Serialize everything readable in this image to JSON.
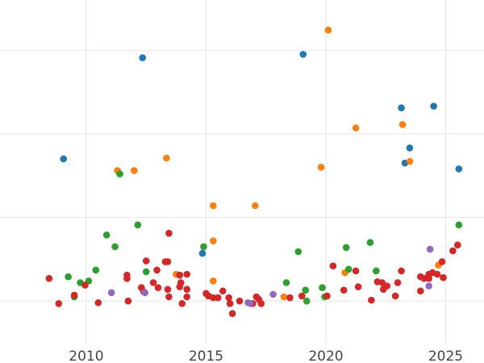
{
  "chart_data": {
    "type": "scatter",
    "x_axis": {
      "kind": "year",
      "lim": [
        2006.4,
        2026.6
      ],
      "ticks": [
        2010,
        2015,
        2020,
        2025
      ]
    },
    "y_axis": {
      "lim": [
        -0.5,
        3.6
      ],
      "ticks": [
        0,
        1,
        2,
        3
      ],
      "tick_labels_visible": false
    },
    "grid": true,
    "legend": "none",
    "series": [
      {
        "color": "#1f77b4",
        "points": [
          [
            2009.05,
            1.7
          ],
          [
            2012.35,
            2.91
          ],
          [
            2014.85,
            0.57
          ],
          [
            2019.05,
            2.95
          ],
          [
            2023.15,
            2.31
          ],
          [
            2023.3,
            1.65
          ],
          [
            2023.5,
            1.83
          ],
          [
            2024.5,
            2.33
          ],
          [
            2025.55,
            1.58
          ]
        ]
      },
      {
        "color": "#ff7f0e",
        "points": [
          [
            2011.3,
            1.56
          ],
          [
            2012.0,
            1.56
          ],
          [
            2013.35,
            1.71
          ],
          [
            2013.75,
            0.32
          ],
          [
            2015.3,
            1.14
          ],
          [
            2015.3,
            0.72
          ],
          [
            2015.3,
            0.24
          ],
          [
            2017.05,
            1.14
          ],
          [
            2018.25,
            0.05
          ],
          [
            2019.8,
            1.6
          ],
          [
            2020.1,
            3.24
          ],
          [
            2020.8,
            0.34
          ],
          [
            2021.25,
            2.07
          ],
          [
            2023.2,
            2.11
          ],
          [
            2023.5,
            1.67
          ],
          [
            2024.7,
            0.43
          ]
        ]
      },
      {
        "color": "#2ca02c",
        "points": [
          [
            2009.25,
            0.29
          ],
          [
            2009.5,
            0.05
          ],
          [
            2009.75,
            0.22
          ],
          [
            2010.1,
            0.24
          ],
          [
            2010.4,
            0.37
          ],
          [
            2010.85,
            0.79
          ],
          [
            2011.2,
            0.65
          ],
          [
            2011.4,
            1.52
          ],
          [
            2012.15,
            0.91
          ],
          [
            2012.5,
            0.35
          ],
          [
            2014.9,
            0.65
          ],
          [
            2018.35,
            0.22
          ],
          [
            2018.85,
            0.59
          ],
          [
            2019.15,
            0.13
          ],
          [
            2019.2,
            0.0
          ],
          [
            2019.85,
            0.16
          ],
          [
            2019.95,
            0.05
          ],
          [
            2020.85,
            0.64
          ],
          [
            2020.95,
            0.38
          ],
          [
            2021.85,
            0.7
          ],
          [
            2022.1,
            0.36
          ],
          [
            2025.55,
            0.91
          ]
        ]
      },
      {
        "color": "#d62728",
        "points": [
          [
            2008.45,
            0.27
          ],
          [
            2008.85,
            -0.03
          ],
          [
            2009.5,
            0.07
          ],
          [
            2009.95,
            0.19
          ],
          [
            2010.5,
            -0.02
          ],
          [
            2011.7,
            0.31
          ],
          [
            2011.7,
            0.27
          ],
          [
            2011.75,
            0.0
          ],
          [
            2012.3,
            0.16
          ],
          [
            2012.4,
            0.11
          ],
          [
            2012.5,
            0.48
          ],
          [
            2012.8,
            0.22
          ],
          [
            2012.95,
            0.37
          ],
          [
            2013.0,
            0.16
          ],
          [
            2013.3,
            0.47
          ],
          [
            2013.4,
            0.47
          ],
          [
            2013.4,
            0.14
          ],
          [
            2013.45,
            0.05
          ],
          [
            2013.45,
            0.81
          ],
          [
            2013.9,
            0.31
          ],
          [
            2013.9,
            0.17
          ],
          [
            2013.95,
            0.22
          ],
          [
            2014.0,
            -0.03
          ],
          [
            2014.2,
            0.32
          ],
          [
            2014.2,
            0.14
          ],
          [
            2014.2,
            0.05
          ],
          [
            2015.0,
            0.09
          ],
          [
            2015.1,
            0.06
          ],
          [
            2015.3,
            0.04
          ],
          [
            2015.5,
            0.04
          ],
          [
            2015.7,
            0.12
          ],
          [
            2015.95,
            0.04
          ],
          [
            2016.0,
            -0.03
          ],
          [
            2016.1,
            -0.15
          ],
          [
            2016.4,
            0.0
          ],
          [
            2016.95,
            -0.03
          ],
          [
            2017.1,
            0.05
          ],
          [
            2017.2,
            0.02
          ],
          [
            2017.3,
            -0.03
          ],
          [
            2018.5,
            0.04
          ],
          [
            2019.0,
            0.06
          ],
          [
            2020.05,
            0.06
          ],
          [
            2020.3,
            0.42
          ],
          [
            2020.75,
            0.13
          ],
          [
            2021.25,
            0.36
          ],
          [
            2021.35,
            0.17
          ],
          [
            2021.9,
            0.01
          ],
          [
            2022.15,
            0.23
          ],
          [
            2022.35,
            0.22
          ],
          [
            2022.4,
            0.14
          ],
          [
            2022.55,
            0.18
          ],
          [
            2022.9,
            0.06
          ],
          [
            2023.0,
            0.22
          ],
          [
            2023.15,
            0.36
          ],
          [
            2023.95,
            0.12
          ],
          [
            2023.95,
            0.29
          ],
          [
            2024.1,
            0.27
          ],
          [
            2024.3,
            0.32
          ],
          [
            2024.3,
            0.27
          ],
          [
            2024.45,
            0.34
          ],
          [
            2024.65,
            0.32
          ],
          [
            2024.85,
            0.47
          ],
          [
            2024.9,
            0.28
          ],
          [
            2025.3,
            0.6
          ],
          [
            2025.5,
            0.67
          ]
        ]
      },
      {
        "color": "#9467bd",
        "points": [
          [
            2011.05,
            0.1
          ],
          [
            2012.45,
            0.1
          ],
          [
            2016.75,
            -0.02
          ],
          [
            2016.85,
            -0.03
          ],
          [
            2017.8,
            0.08
          ],
          [
            2024.3,
            0.18
          ],
          [
            2024.35,
            0.62
          ]
        ]
      }
    ]
  }
}
